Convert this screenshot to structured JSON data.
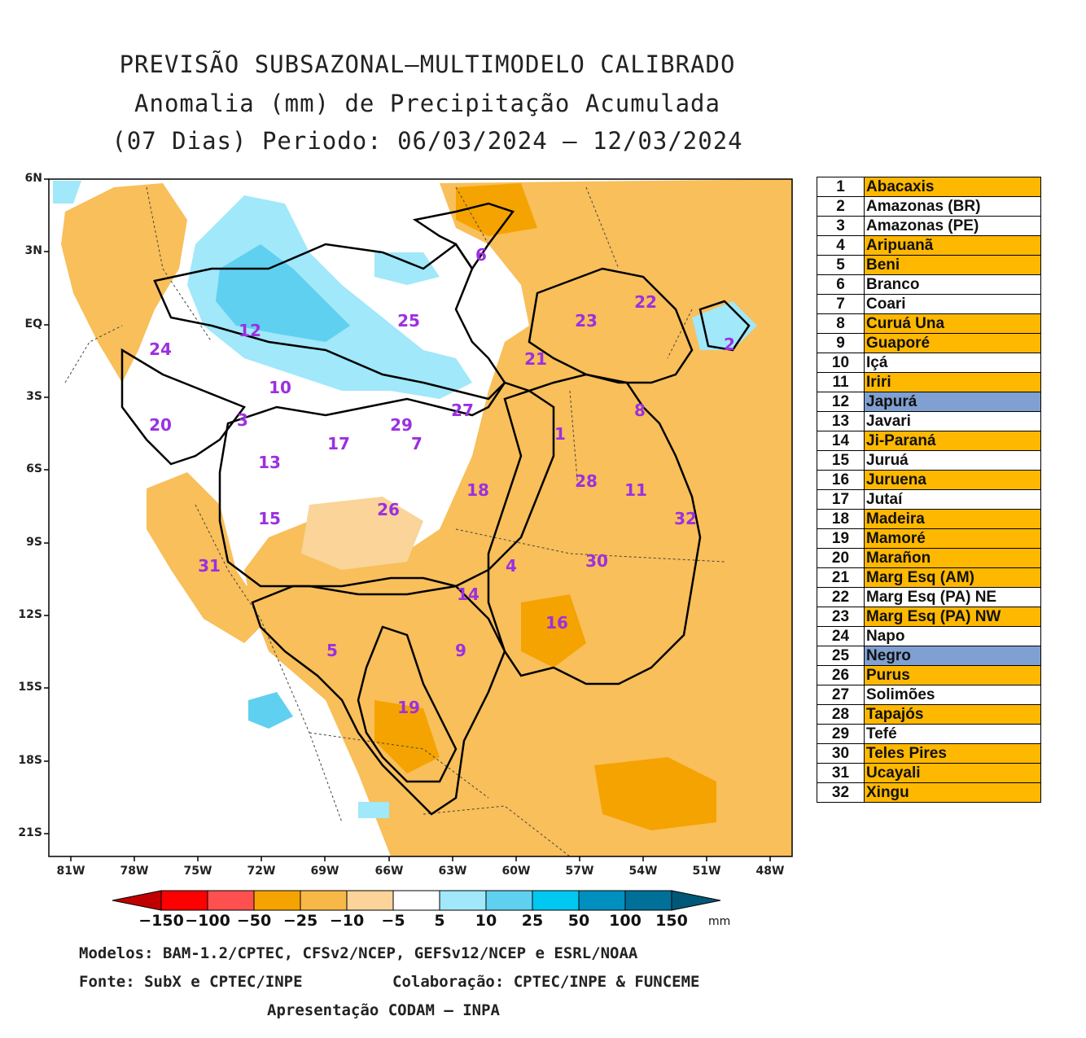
{
  "title": {
    "line1": "PREVISÃO SUBSAZONAL—MULTIMODELO CALIBRADO",
    "line2": "Anomalia (mm) de Precipitação Acumulada",
    "line3": "(07 Dias) Periodo: 06/03/2024 — 12/03/2024"
  },
  "axes": {
    "lat": [
      "6N",
      "3N",
      "EQ",
      "3S",
      "6S",
      "9S",
      "12S",
      "15S",
      "18S",
      "21S"
    ],
    "lon": [
      "81W",
      "78W",
      "75W",
      "72W",
      "69W",
      "66W",
      "63W",
      "60W",
      "57W",
      "54W",
      "51W",
      "48W"
    ]
  },
  "basin_labels": [
    "1",
    "2",
    "3",
    "4",
    "5",
    "6",
    "7",
    "8",
    "9",
    "10",
    "11",
    "12",
    "13",
    "14",
    "15",
    "16",
    "17",
    "18",
    "19",
    "20",
    "21",
    "22",
    "23",
    "24",
    "25",
    "26",
    "27",
    "28",
    "29",
    "30",
    "31",
    "32"
  ],
  "legend": [
    {
      "num": "1",
      "name": "Abacaxis",
      "color": "#FFB800"
    },
    {
      "num": "2",
      "name": "Amazonas (BR)",
      "color": "#FFFFFF"
    },
    {
      "num": "3",
      "name": "Amazonas (PE)",
      "color": "#FFFFFF"
    },
    {
      "num": "4",
      "name": "Aripuanã",
      "color": "#FFB800"
    },
    {
      "num": "5",
      "name": "Beni",
      "color": "#FFB800"
    },
    {
      "num": "6",
      "name": "Branco",
      "color": "#FFFFFF"
    },
    {
      "num": "7",
      "name": "Coari",
      "color": "#FFFFFF"
    },
    {
      "num": "8",
      "name": "Curuá Una",
      "color": "#FFB800"
    },
    {
      "num": "9",
      "name": "Guaporé",
      "color": "#FFB800"
    },
    {
      "num": "10",
      "name": "Içá",
      "color": "#FFFFFF"
    },
    {
      "num": "11",
      "name": "Iriri",
      "color": "#FFB800"
    },
    {
      "num": "12",
      "name": "Japurá",
      "color": "#7FA0D0"
    },
    {
      "num": "13",
      "name": "Javari",
      "color": "#FFFFFF"
    },
    {
      "num": "14",
      "name": "Ji-Paraná",
      "color": "#FFB800"
    },
    {
      "num": "15",
      "name": "Juruá",
      "color": "#FFFFFF"
    },
    {
      "num": "16",
      "name": "Juruena",
      "color": "#FFB800"
    },
    {
      "num": "17",
      "name": "Jutaí",
      "color": "#FFFFFF"
    },
    {
      "num": "18",
      "name": "Madeira",
      "color": "#FFB800"
    },
    {
      "num": "19",
      "name": "Mamoré",
      "color": "#FFB800"
    },
    {
      "num": "20",
      "name": "Marañon",
      "color": "#FFB800"
    },
    {
      "num": "21",
      "name": "Marg Esq (AM)",
      "color": "#FFB800"
    },
    {
      "num": "22",
      "name": "Marg Esq (PA) NE",
      "color": "#FFFFFF"
    },
    {
      "num": "23",
      "name": "Marg Esq (PA) NW",
      "color": "#FFB800"
    },
    {
      "num": "24",
      "name": "Napo",
      "color": "#FFFFFF"
    },
    {
      "num": "25",
      "name": "Negro",
      "color": "#7FA0D0"
    },
    {
      "num": "26",
      "name": "Purus",
      "color": "#FFB800"
    },
    {
      "num": "27",
      "name": "Solimões",
      "color": "#FFFFFF"
    },
    {
      "num": "28",
      "name": "Tapajós",
      "color": "#FFB800"
    },
    {
      "num": "29",
      "name": "Tefé",
      "color": "#FFFFFF"
    },
    {
      "num": "30",
      "name": "Teles Pires",
      "color": "#FFB800"
    },
    {
      "num": "31",
      "name": "Ucayali",
      "color": "#FFB800"
    },
    {
      "num": "32",
      "name": "Xingu",
      "color": "#FFB800"
    }
  ],
  "colorbar": {
    "labels": [
      "−150",
      "−100",
      "−50",
      "−25",
      "−10",
      "−5",
      "5",
      "10",
      "25",
      "50",
      "100",
      "150"
    ],
    "unit": "mm",
    "colors": [
      "#C00000",
      "#FF0000",
      "#FF5050",
      "#F5A300",
      "#F8B848",
      "#FAD498",
      "#FFFFFF",
      "#A0E8FA",
      "#60D0F0",
      "#00C8F0",
      "#0090C0",
      "#007098",
      "#005878"
    ]
  },
  "footer": {
    "line1": "Modelos: BAM-1.2/CPTEC, CFSv2/NCEP, GEFSv12/NCEP e ESRL/NOAA",
    "line2a": "Fonte: SubX e CPTEC/INPE",
    "line2b": "Colaboração: CPTEC/INPE & FUNCEME",
    "line3": "Apresentação CODAM — INPA"
  }
}
